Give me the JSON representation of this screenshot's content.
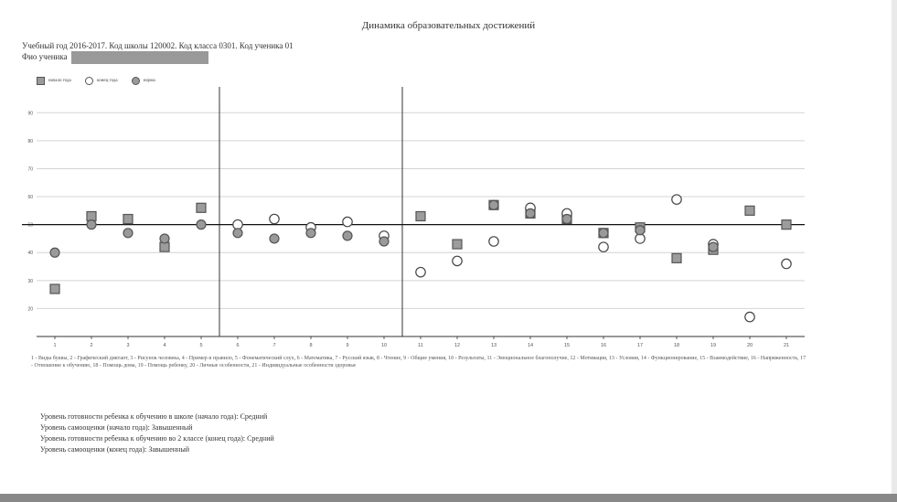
{
  "title": "Динамика образовательных достижений",
  "meta": {
    "line1": "Учебный год 2016-2017. Код школы 120002. Код класса 0301. Код ученика 01",
    "line2_label": "Фио ученика"
  },
  "legend": {
    "series1": "начало года",
    "series2": "конец года",
    "series3": "норма"
  },
  "footnote": "1 - Виды буквы, 2 - Графический диктант, 3 - Рисунок человека, 4 - Пример и правило, 5 - Фонематический слух, 6 - Математика, 7 - Русский язык, 8 - Чтение, 9 - Общие умения, 10 - Результаты, 11 - Эмоциональное благополучие, 12 - Мотивация, 13 - Условия, 14 - Функционирование, 15 - Взаимодействие, 16 - Напряженность, 17 - Отношение к обучению, 18 - Помощь дома, 19 - Помощь ребенку, 20 - Личные особенности, 21 - Индивидуальные особенности здоровья",
  "levels": [
    "Уровень готовности ребенка к обучению в школе (начало года): Средний",
    "Уровень самооценки (начало года): Завышенный",
    "Уровень готовности ребенка к обучению во 2 классе (конец года): Средний",
    "Уровень самооценки (конец года): Завышенный"
  ],
  "chart_data": {
    "type": "scatter",
    "x": [
      1,
      2,
      3,
      4,
      5,
      6,
      7,
      8,
      9,
      10,
      11,
      12,
      13,
      14,
      15,
      16,
      17,
      18,
      19,
      20,
      21
    ],
    "xtick_labels": [
      "1",
      "2",
      "3",
      "4",
      "5",
      "6",
      "7",
      "8",
      "9",
      "10",
      "11",
      "12",
      "13",
      "14",
      "15",
      "16",
      "17",
      "18",
      "19",
      "20",
      "21"
    ],
    "ytick_labels": [
      "20",
      "30",
      "40",
      "50",
      "60",
      "70",
      "80",
      "90"
    ],
    "ylim": [
      10,
      95
    ],
    "reference_line": 50,
    "separators_after": [
      5,
      10
    ],
    "grid": true,
    "series": [
      {
        "name": "начало года",
        "marker": "square-filled",
        "points": [
          [
            1,
            27
          ],
          [
            2,
            53
          ],
          [
            3,
            52
          ],
          [
            4,
            42
          ],
          [
            5,
            56
          ],
          [
            11,
            53
          ],
          [
            12,
            43
          ],
          [
            13,
            57
          ],
          [
            14,
            54
          ],
          [
            15,
            52
          ],
          [
            16,
            47
          ],
          [
            17,
            49
          ],
          [
            18,
            38
          ],
          [
            19,
            41
          ],
          [
            20,
            55
          ],
          [
            21,
            50
          ]
        ]
      },
      {
        "name": "конец года",
        "marker": "circle-open",
        "points": [
          [
            6,
            50
          ],
          [
            7,
            52
          ],
          [
            8,
            49
          ],
          [
            9,
            51
          ],
          [
            10,
            46
          ],
          [
            11,
            33
          ],
          [
            12,
            37
          ],
          [
            13,
            44
          ],
          [
            14,
            56
          ],
          [
            15,
            54
          ],
          [
            16,
            42
          ],
          [
            17,
            45
          ],
          [
            18,
            59
          ],
          [
            19,
            43
          ],
          [
            20,
            17
          ],
          [
            21,
            36
          ]
        ]
      },
      {
        "name": "норма",
        "marker": "circle-filled",
        "points": [
          [
            1,
            40
          ],
          [
            2,
            50
          ],
          [
            3,
            47
          ],
          [
            4,
            45
          ],
          [
            5,
            50
          ],
          [
            6,
            47
          ],
          [
            7,
            45
          ],
          [
            8,
            47
          ],
          [
            9,
            46
          ],
          [
            10,
            44
          ],
          [
            13,
            57
          ],
          [
            14,
            54
          ],
          [
            15,
            52
          ],
          [
            16,
            47
          ],
          [
            17,
            48
          ],
          [
            19,
            42
          ]
        ]
      }
    ]
  }
}
